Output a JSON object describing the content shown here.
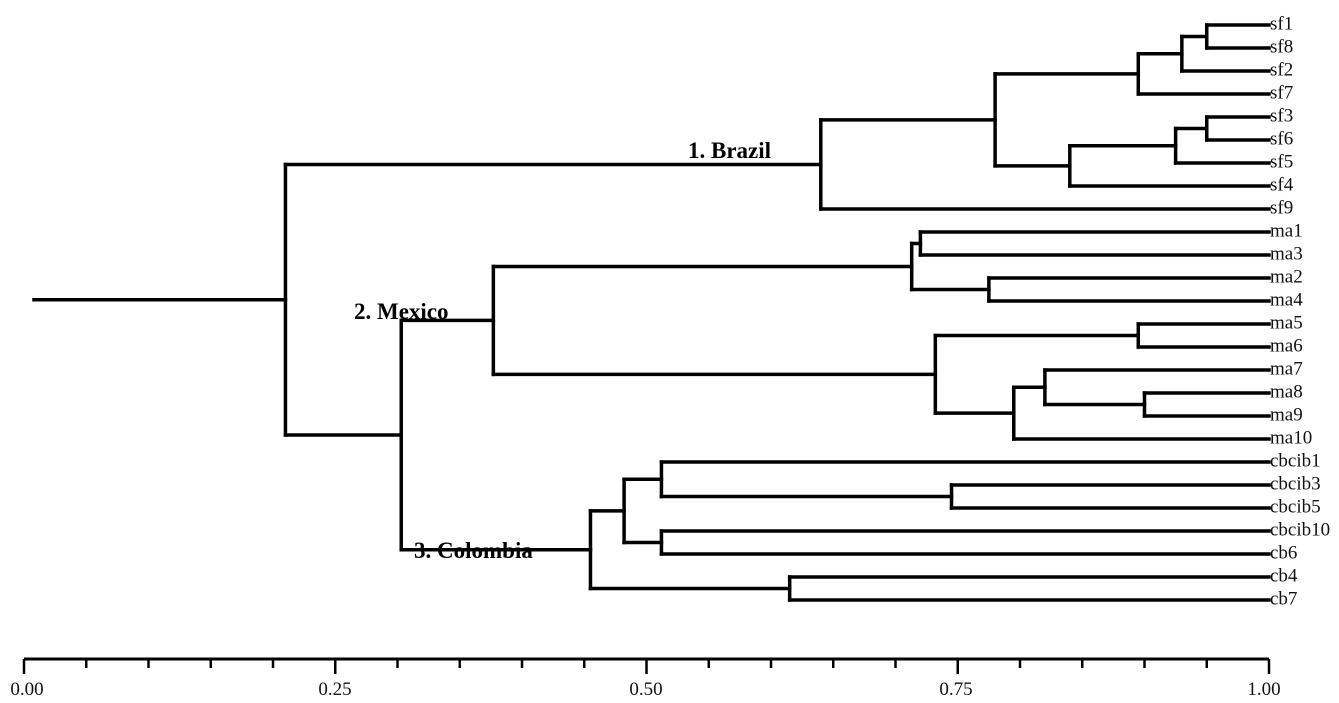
{
  "colors": {
    "line": "#000000",
    "background": "#ffffff"
  },
  "axis": {
    "range": [
      0,
      1
    ],
    "major_tick_labels": [
      "0.00",
      "0.25",
      "0.50",
      "0.75",
      "1.00"
    ]
  },
  "clusters": [
    {
      "label": "1. Brazil"
    },
    {
      "label": "2. Mexico"
    },
    {
      "label": "3. Colombia"
    }
  ],
  "leaves": [
    "sf1",
    "sf8",
    "sf2",
    "sf7",
    "sf3",
    "sf6",
    "sf5",
    "sf4",
    "sf9",
    "ma1",
    "ma3",
    "ma2",
    "ma4",
    "ma5",
    "ma6",
    "ma7",
    "ma8",
    "ma9",
    "ma10",
    "cbcib1",
    "cbcib3",
    "cbcib5",
    "cbcib10",
    "cb6",
    "cb4",
    "cb7"
  ],
  "tree": {
    "h": 0.21,
    "children": [
      {
        "h": 0.64,
        "children": [
          {
            "h": 0.78,
            "children": [
              {
                "h": 0.895,
                "children": [
                  {
                    "h": 0.93,
                    "children": [
                      {
                        "h": 0.95,
                        "children": [
                          {
                            "leaf": "sf1"
                          },
                          {
                            "leaf": "sf8"
                          }
                        ]
                      },
                      {
                        "leaf": "sf2"
                      }
                    ]
                  },
                  {
                    "leaf": "sf7"
                  }
                ]
              },
              {
                "h": 0.84,
                "children": [
                  {
                    "h": 0.925,
                    "children": [
                      {
                        "h": 0.95,
                        "children": [
                          {
                            "leaf": "sf3"
                          },
                          {
                            "leaf": "sf6"
                          }
                        ]
                      },
                      {
                        "leaf": "sf5"
                      }
                    ]
                  },
                  {
                    "leaf": "sf4"
                  }
                ]
              }
            ]
          },
          {
            "leaf": "sf9"
          }
        ]
      },
      {
        "h": 0.303,
        "children": [
          {
            "h": 0.377,
            "children": [
              {
                "h": 0.713,
                "children": [
                  {
                    "h": 0.72,
                    "children": [
                      {
                        "leaf": "ma1"
                      },
                      {
                        "leaf": "ma3"
                      }
                    ]
                  },
                  {
                    "h": 0.775,
                    "children": [
                      {
                        "leaf": "ma2"
                      },
                      {
                        "leaf": "ma4"
                      }
                    ]
                  }
                ]
              },
              {
                "h": 0.732,
                "children": [
                  {
                    "h": 0.895,
                    "children": [
                      {
                        "leaf": "ma5"
                      },
                      {
                        "leaf": "ma6"
                      }
                    ]
                  },
                  {
                    "h": 0.795,
                    "children": [
                      {
                        "h": 0.82,
                        "children": [
                          {
                            "leaf": "ma7"
                          },
                          {
                            "h": 0.9,
                            "children": [
                              {
                                "leaf": "ma8"
                              },
                              {
                                "leaf": "ma9"
                              }
                            ]
                          }
                        ]
                      },
                      {
                        "leaf": "ma10"
                      }
                    ]
                  }
                ]
              }
            ]
          },
          {
            "h": 0.455,
            "children": [
              {
                "h": 0.482,
                "children": [
                  {
                    "h": 0.512,
                    "children": [
                      {
                        "leaf": "cbcib1"
                      },
                      {
                        "h": 0.745,
                        "children": [
                          {
                            "leaf": "cbcib3"
                          },
                          {
                            "leaf": "cbcib5"
                          }
                        ]
                      }
                    ]
                  },
                  {
                    "h": 0.512,
                    "children": [
                      {
                        "leaf": "cbcib10"
                      },
                      {
                        "leaf": "cb6"
                      }
                    ]
                  }
                ]
              },
              {
                "h": 0.615,
                "children": [
                  {
                    "leaf": "cb4"
                  },
                  {
                    "leaf": "cb7"
                  }
                ]
              }
            ]
          }
        ]
      }
    ]
  }
}
